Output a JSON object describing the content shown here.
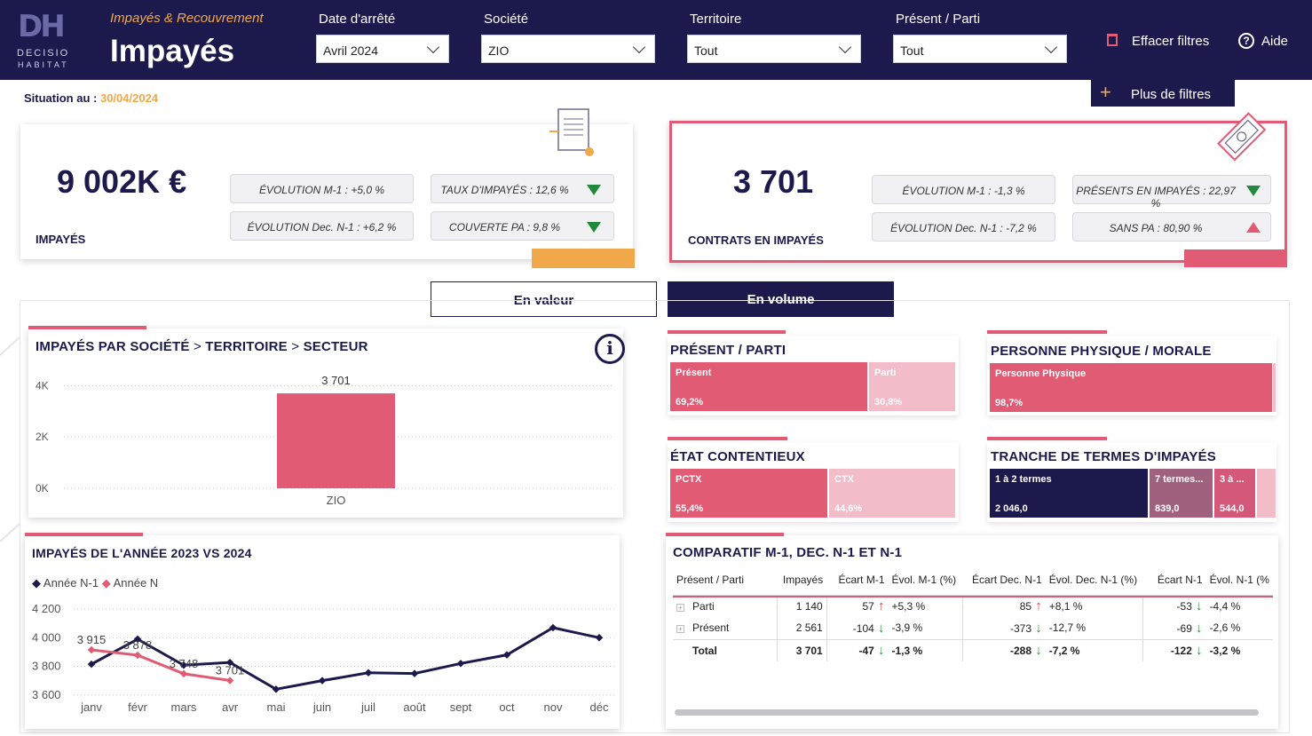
{
  "header": {
    "subtitle": "Impayés & Recouvrement",
    "title": "Impayés",
    "logo_line1": "DECISIO",
    "logo_line2": "HABITAT",
    "filters": [
      {
        "label": "Date d'arrêté",
        "value": "Avril 2024"
      },
      {
        "label": "Société",
        "value": "ZIO"
      },
      {
        "label": "Territoire",
        "value": "Tout"
      },
      {
        "label": "Présent / Parti",
        "value": "Tout"
      }
    ],
    "clear_label": "Effacer filtres",
    "help_label": "Aide",
    "more_label": "Plus de filtres"
  },
  "situation": {
    "label": "Situation au :",
    "date": "30/04/2024"
  },
  "kpi_left": {
    "value": "9 002K €",
    "caption": "IMPAYÉS",
    "pills": [
      "ÉVOLUTION M-1 : +5,0 %",
      "TAUX D'IMPAYÉS : 12,6 %",
      "ÉVOLUTION Dec. N-1 : +6,2 %",
      "COUVERTE PA : 9,8 %"
    ]
  },
  "kpi_right": {
    "value": "3 701",
    "caption": "CONTRATS EN IMPAYÉS",
    "pills": [
      "ÉVOLUTION M-1 : -1,3 %",
      "PRÉSENTS EN IMPAYÉS : 22,97 %",
      "ÉVOLUTION Dec. N-1 : -7,2 %",
      "SANS PA : 80,90 %"
    ]
  },
  "toggle": {
    "value_label": "En valeur",
    "volume_label": "En volume"
  },
  "colors": {
    "navy": "#1c1a4d",
    "pink": "#e15b74",
    "light_pink": "#f2bcc8",
    "orange": "#f0a84a",
    "mauve": "#a0617f"
  },
  "bar_section": {
    "title_parts": [
      "IMPAYÉS PAR SOCIÉTÉ",
      ">",
      "TERRITOIRE",
      ">",
      "SECTEUR"
    ],
    "info_icon": "info-icon"
  },
  "chart_data": [
    {
      "type": "bar",
      "categories": [
        "ZIO"
      ],
      "values": [
        3701
      ],
      "data_labels": [
        "3 701"
      ],
      "yticks": [
        "0K",
        "2K",
        "4K"
      ],
      "ylim": [
        0,
        4500
      ],
      "title": "",
      "xlabel": "",
      "ylabel": ""
    },
    {
      "type": "line",
      "title": "IMPAYÉS DE L'ANNÉE 2023 VS 2024",
      "categories": [
        "janv",
        "févr",
        "mars",
        "avr",
        "mai",
        "juin",
        "juil",
        "août",
        "sept",
        "oct",
        "nov",
        "déc"
      ],
      "yticks": [
        "3 600",
        "3 800",
        "4 000",
        "4 200"
      ],
      "ylim": [
        3580,
        4250
      ],
      "series": [
        {
          "name": "Année N-1",
          "color": "#1c1a4d",
          "values": [
            3815,
            3990,
            3808,
            3827,
            3640,
            3700,
            3755,
            3750,
            3820,
            3880,
            4070,
            4000
          ]
        },
        {
          "name": "Année N",
          "color": "#e15b74",
          "values": [
            3915,
            3878,
            3748,
            3701,
            null,
            null,
            null,
            null,
            null,
            null,
            null,
            null
          ],
          "data_labels": [
            "3 915",
            "3 878",
            "3 748",
            "3 701"
          ]
        }
      ]
    }
  ],
  "treemaps": {
    "present": {
      "title": "PRÉSENT / PARTI",
      "items": [
        {
          "label": "Présent",
          "value": "69,2%",
          "share": 69.2
        },
        {
          "label": "Parti",
          "value": "30,8%",
          "share": 30.8
        }
      ]
    },
    "personne": {
      "title": "PERSONNE PHYSIQUE / MORALE",
      "items": [
        {
          "label": "Personne Physique",
          "value": "98,7%",
          "share": 98.7
        }
      ]
    },
    "etat": {
      "title": "ÉTAT CONTENTIEUX",
      "items": [
        {
          "label": "PCTX",
          "value": "55,4%",
          "share": 55.4
        },
        {
          "label": "CTX",
          "value": "44,6%",
          "share": 44.6
        }
      ]
    },
    "tranche": {
      "title": "TRANCHE DE TERMES D'IMPAYÉS",
      "items": [
        {
          "label": "1 à 2 termes",
          "value": "2 046,0"
        },
        {
          "label": "7 termes...",
          "value": "839,0"
        },
        {
          "label": "3 à ...",
          "value": "544,0"
        }
      ]
    }
  },
  "table": {
    "title": "COMPARATIF M-1, DEC. N-1 ET N-1",
    "headers": [
      "Présent / Parti",
      "Impayés",
      "Écart M-1",
      "Évol. M-1 (%)",
      "Écart Dec. N-1",
      "Évol. Dec. N-1 (%)",
      "Écart N-1",
      "Évol. N-1 (%"
    ],
    "rows": [
      {
        "name": "Parti",
        "impayes": "1 140",
        "ecart_m1": "57",
        "evol_m1": "+5,3 %",
        "ecart_dec": "85",
        "evol_dec": "+8,1 %",
        "ecart_n1": "-53",
        "evol_n1": "-4,4 %"
      },
      {
        "name": "Présent",
        "impayes": "2 561",
        "ecart_m1": "-104",
        "evol_m1": "-3,9 %",
        "ecart_dec": "-373",
        "evol_dec": "-12,7 %",
        "ecart_n1": "-69",
        "evol_n1": "-2,6 %"
      },
      {
        "name": "Total",
        "impayes": "3 701",
        "ecart_m1": "-47",
        "evol_m1": "-1,3 %",
        "ecart_dec": "-288",
        "evol_dec": "-7,2 %",
        "ecart_n1": "-122",
        "evol_n1": "-3,2 %"
      }
    ]
  }
}
